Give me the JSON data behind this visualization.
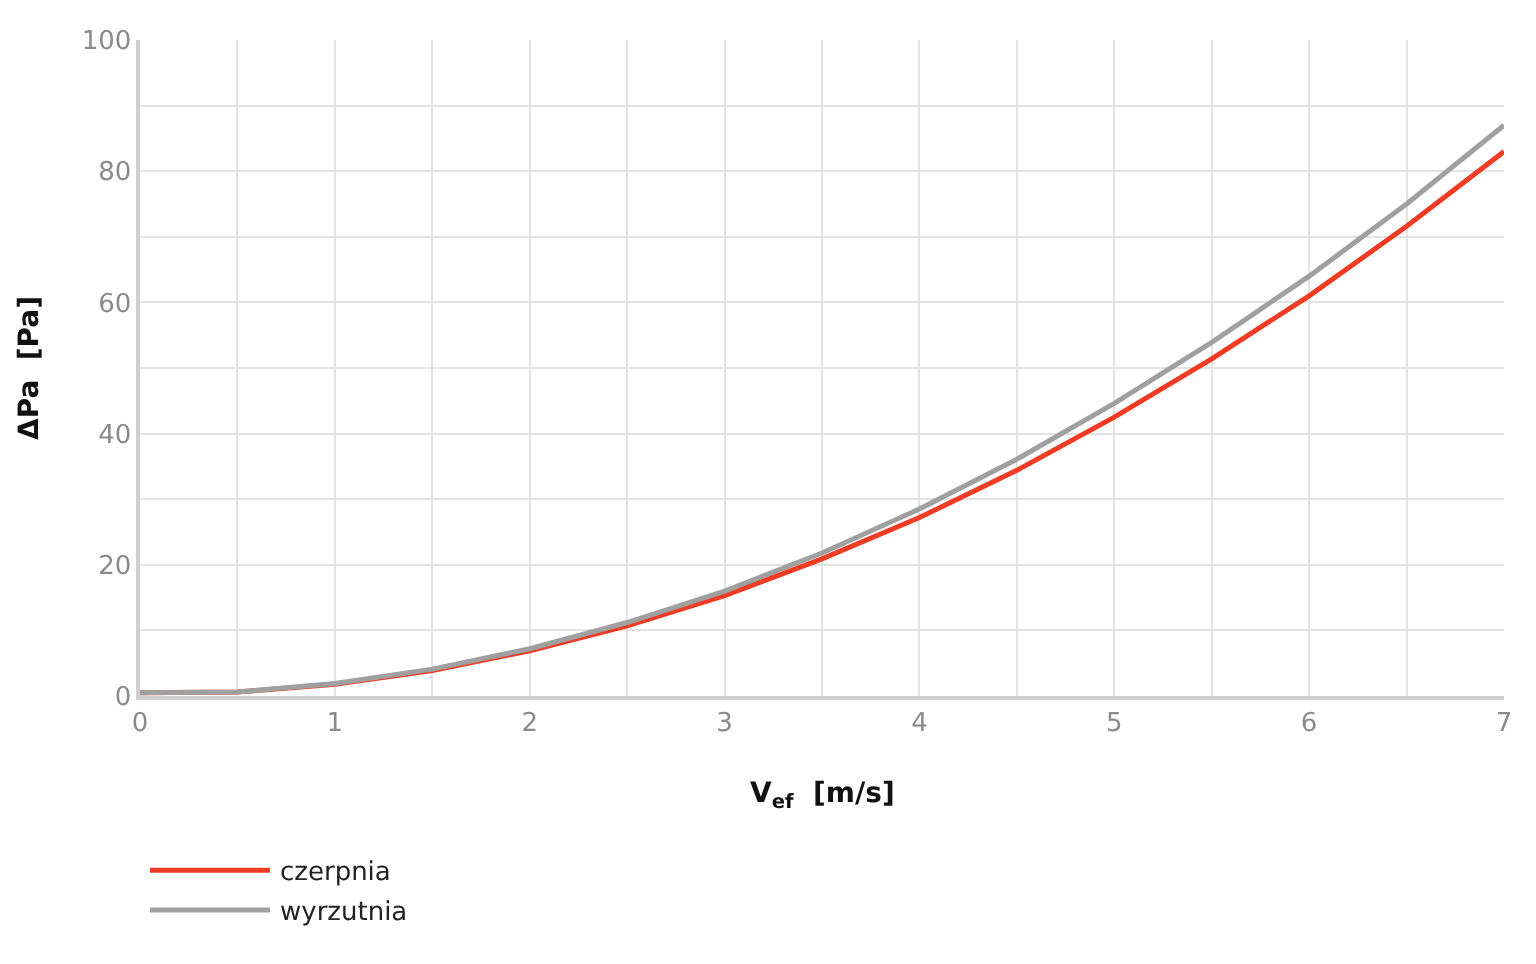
{
  "chart_data": {
    "type": "line",
    "xlabel": "V$_{ef}$  [m/s]",
    "ylabel": "ΔPa  [Pa]",
    "x": [
      0,
      0.5,
      1,
      1.5,
      2,
      2.5,
      3,
      3.5,
      4,
      4.5,
      5,
      5.5,
      6,
      6.5,
      7
    ],
    "series": [
      {
        "name": "czerpnia",
        "color": "#f03c24",
        "values": [
          0.5,
          0.6,
          1.8,
          3.9,
          6.9,
          10.7,
          15.3,
          20.9,
          27.2,
          34.4,
          42.5,
          51.4,
          61,
          71.6,
          83
        ]
      },
      {
        "name": "wyrzutnia",
        "color": "#a0a0a0",
        "values": [
          0.5,
          0.6,
          1.9,
          4.1,
          7.2,
          11.2,
          16,
          21.8,
          28.5,
          36.1,
          44.6,
          53.9,
          64,
          75,
          87
        ]
      }
    ],
    "xlim": [
      0,
      7
    ],
    "ylim": [
      0,
      100
    ],
    "xticks": [
      0,
      {
        "value": 0.5,
        "label": null
      },
      1,
      {
        "value": 1.5,
        "label": null
      },
      2,
      {
        "value": 2.5,
        "label": null
      },
      3,
      {
        "value": 3.5,
        "label": null
      },
      4,
      {
        "value": 4.5,
        "label": null
      },
      5,
      {
        "value": 5.5,
        "label": null
      },
      6,
      {
        "value": 6.5,
        "label": null
      },
      7
    ],
    "yticks": [
      0,
      {
        "value": 10,
        "label": null
      },
      20,
      {
        "value": 30,
        "label": null
      },
      40,
      {
        "value": 50,
        "label": null
      },
      60,
      {
        "value": 70,
        "label": null
      },
      80,
      {
        "value": 90,
        "label": null
      },
      100
    ],
    "grid": true,
    "legend": "bottom left",
    "marker": "none",
    "line_style": "solid"
  }
}
